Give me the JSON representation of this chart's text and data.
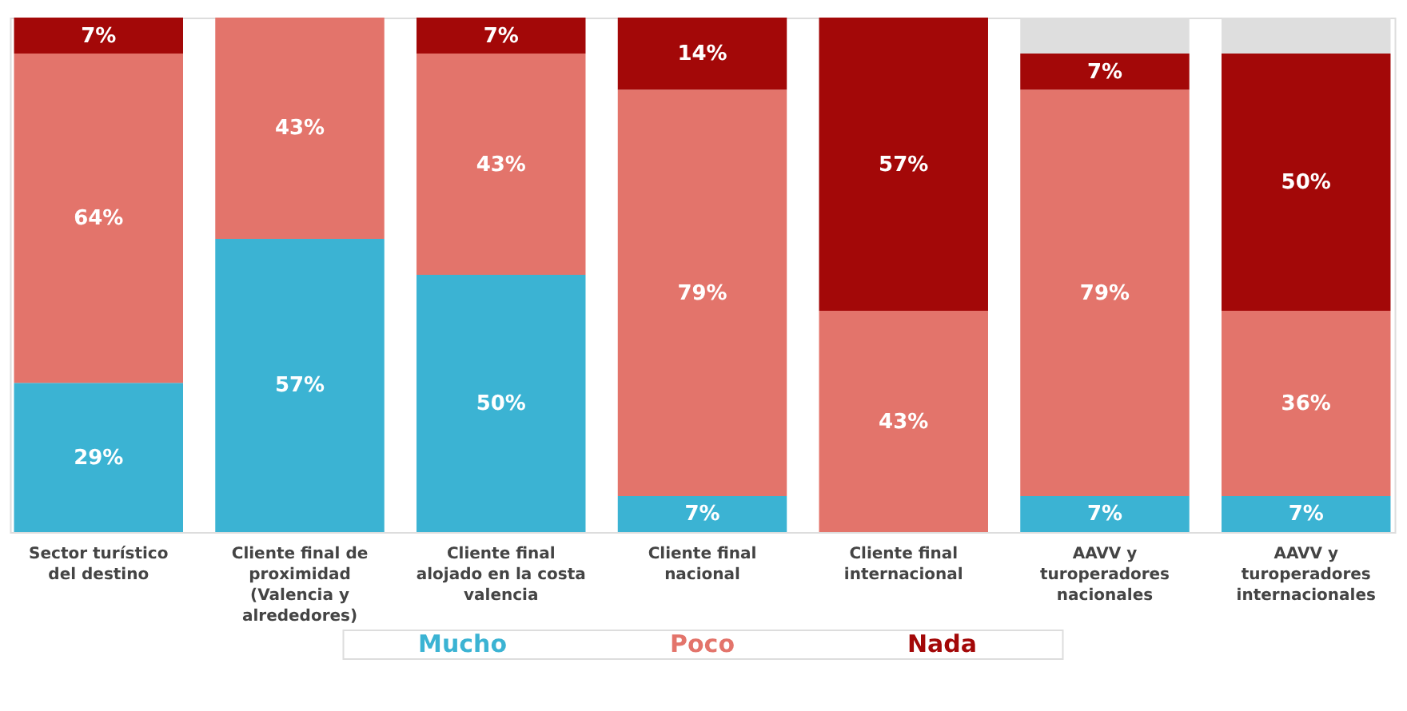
{
  "chart_data": {
    "type": "bar",
    "stacked": true,
    "categories": [
      "Sector turístico del destino",
      "Cliente final de proximidad (Valencia y alrededores)",
      "Cliente final alojado en la costa valencia",
      "Cliente final nacional",
      "Cliente final internacional",
      "AAVV y turoperadores nacionales",
      "AAVV y turoperadores internacionales"
    ],
    "series": [
      {
        "name": "Mucho",
        "color": "#3bb3d3",
        "values": [
          29,
          57,
          50,
          7,
          0,
          7,
          7
        ],
        "value_labels": [
          "29%",
          "57%",
          "50%",
          "7%",
          null,
          "7%",
          "7%"
        ]
      },
      {
        "name": "Poco",
        "color": "#e3746b",
        "values": [
          64,
          43,
          43,
          79,
          43,
          79,
          36
        ],
        "value_labels": [
          "64%",
          "43%",
          "43%",
          "79%",
          "43%",
          "79%",
          "36%"
        ]
      },
      {
        "name": "Nada",
        "color": "#a30808",
        "values": [
          7,
          0,
          7,
          14,
          57,
          7,
          50
        ],
        "value_labels": [
          "7%",
          null,
          "7%",
          "14%",
          "57%",
          "7%",
          "50%"
        ]
      },
      {
        "color": "#dedede",
        "values": [
          0,
          0,
          0,
          0,
          0,
          7,
          7
        ]
      }
    ],
    "ylim": [
      0,
      100
    ],
    "tick_labels": "x",
    "legend": "bottom"
  }
}
